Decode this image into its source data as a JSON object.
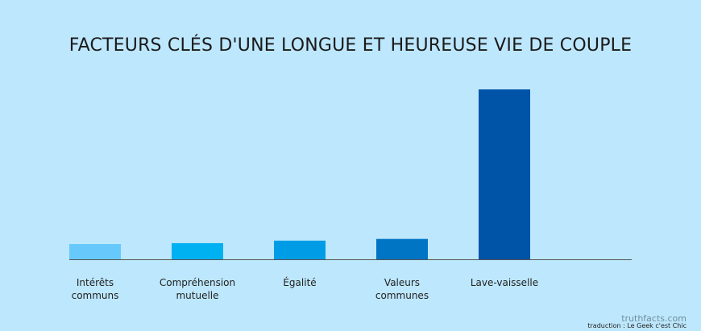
{
  "chart_data": {
    "type": "bar",
    "title": "FACTEURS CLÉS D'UNE LONGUE ET HEUREUSE VIE DE COUPLE",
    "categories": [
      [
        "Intérêts",
        "communs"
      ],
      [
        "Compréhension",
        "mutuelle"
      ],
      [
        "Égalité"
      ],
      [
        "Valeurs",
        "communes"
      ],
      [
        "Lave-vaisselle"
      ]
    ],
    "values": [
      9,
      9.5,
      11,
      12,
      100
    ],
    "bar_colors": [
      "#67c9fb",
      "#00b1f2",
      "#009de6",
      "#0075c4",
      "#0054a7"
    ],
    "ylim": [
      0,
      100
    ],
    "grid": false,
    "axis_color": "#555555"
  },
  "credits": {
    "site": "truthfacts.com",
    "translation": "traduction : Le Geek c'est Chic"
  }
}
